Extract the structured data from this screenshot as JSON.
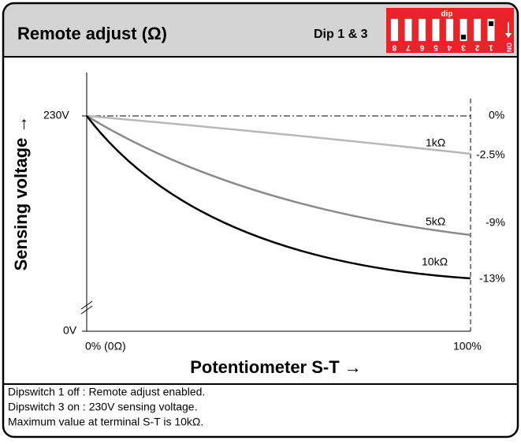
{
  "header": {
    "title": "Remote adjust  (Ω)",
    "dip_label": "Dip 1 & 3",
    "dip_switch": {
      "caption": "dip",
      "on_label": "ON",
      "numbers": [
        "8",
        "7",
        "6",
        "5",
        "4",
        "3",
        "2",
        "1"
      ]
    }
  },
  "diagram": {
    "y_axis_label": "Sensing voltage →",
    "x_axis_label": "Potentiometer S-T →",
    "y_top_label": "230V",
    "y_bottom_label": "0V",
    "x_start_label": "0% (0Ω)",
    "x_end_label": "100%",
    "right_labels": [
      "0%",
      "-2.5%",
      "-9%",
      "-13%"
    ],
    "curves": [
      {
        "label": "1kΩ"
      },
      {
        "label": "5kΩ"
      },
      {
        "label": "10kΩ"
      }
    ]
  },
  "notes": [
    "Dipswitch 1 off : Remote adjust enabled.",
    "Dipswitch 3 on : 230V sensing voltage.",
    "Maximum value at terminal S-T is 10kΩ."
  ]
}
